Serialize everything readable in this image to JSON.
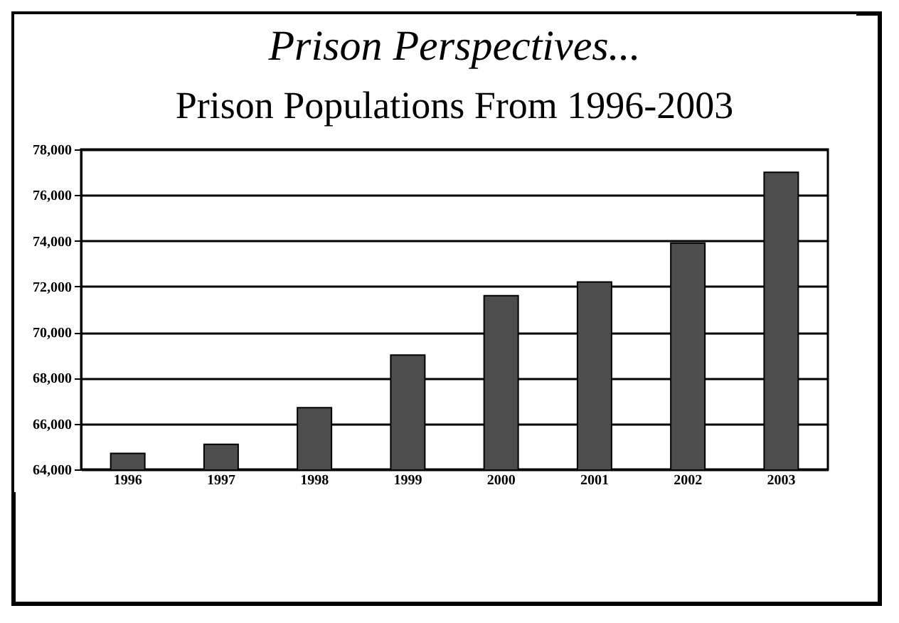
{
  "chart_data": {
    "type": "bar",
    "title": "Prison Perspectives...",
    "subtitle": "Prison Populations From 1996-2003",
    "categories": [
      "1996",
      "1997",
      "1998",
      "1999",
      "2000",
      "2001",
      "2002",
      "2003"
    ],
    "values": [
      64700,
      65100,
      66700,
      69000,
      71600,
      72200,
      73900,
      77000
    ],
    "color": "#4d4d4d",
    "ylim": [
      64000,
      78000
    ],
    "yticks": [
      {
        "value": 64000,
        "label": "64,000"
      },
      {
        "value": 66000,
        "label": "66,000"
      },
      {
        "value": 68000,
        "label": "68,000"
      },
      {
        "value": 70000,
        "label": "70,000"
      },
      {
        "value": 72000,
        "label": "72,000"
      },
      {
        "value": 74000,
        "label": "74,000"
      },
      {
        "value": 76000,
        "label": "76,000"
      },
      {
        "value": 78000,
        "label": "78,000"
      }
    ],
    "grid": "y"
  }
}
